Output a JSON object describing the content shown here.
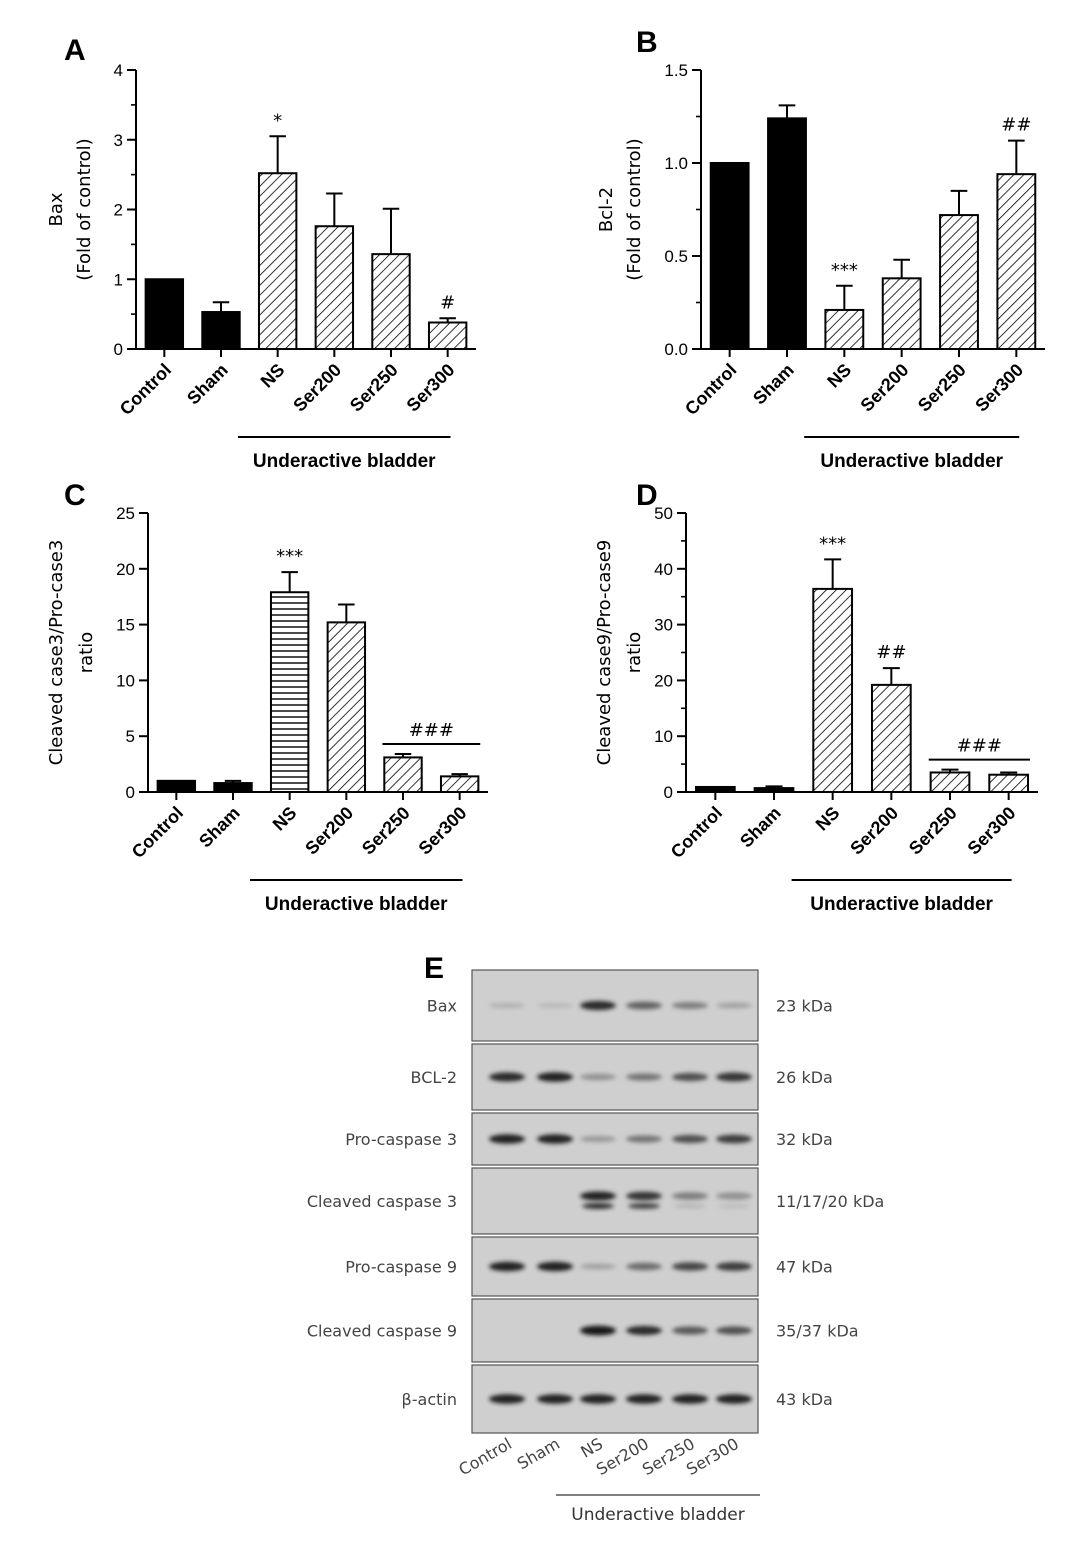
{
  "chart_data": [
    {
      "panel": "A",
      "type": "bar",
      "ylabel_lines": [
        "Bax",
        "(Fold of control)"
      ],
      "ylim": [
        0,
        4
      ],
      "yticks": [
        0,
        1,
        2,
        3,
        4
      ],
      "minor_ticks": true,
      "categories": [
        "Control",
        "Sham",
        "NS",
        "Ser200",
        "Ser250",
        "Ser300"
      ],
      "values": [
        1.0,
        0.53,
        2.52,
        1.76,
        1.36,
        0.38
      ],
      "errors": [
        0,
        0.14,
        0.53,
        0.47,
        0.65,
        0.06
      ],
      "fills": [
        "solid",
        "solid",
        "hatch",
        "hatch",
        "hatch",
        "hatch"
      ],
      "significance": [
        {
          "from": "NS",
          "to": "NS",
          "label": "*",
          "bracket": false
        },
        {
          "from": "Ser300",
          "to": "Ser300",
          "label": "#",
          "bracket": false
        }
      ],
      "group": {
        "label": "Underactive bladder",
        "from": "NS",
        "to": "Ser300"
      }
    },
    {
      "panel": "B",
      "type": "bar",
      "ylabel_lines": [
        "Bcl-2",
        "(Fold of control)"
      ],
      "ylim": [
        0,
        1.5
      ],
      "yticks": [
        "0.0",
        "0.5",
        "1.0",
        "1.5"
      ],
      "minor_ticks": true,
      "categories": [
        "Control",
        "Sham",
        "NS",
        "Ser200",
        "Ser250",
        "Ser300"
      ],
      "values": [
        1.0,
        1.24,
        0.21,
        0.38,
        0.72,
        0.94
      ],
      "errors": [
        0,
        0.07,
        0.13,
        0.1,
        0.13,
        0.18
      ],
      "fills": [
        "solid",
        "solid",
        "hatch",
        "hatch",
        "hatch",
        "hatch"
      ],
      "significance": [
        {
          "from": "NS",
          "to": "NS",
          "label": "***",
          "bracket": false
        },
        {
          "from": "Ser300",
          "to": "Ser300",
          "label": "##",
          "bracket": false
        }
      ],
      "group": {
        "label": "Underactive bladder",
        "from": "NS",
        "to": "Ser300"
      }
    },
    {
      "panel": "C",
      "type": "bar",
      "ylabel_lines": [
        "Cleaved case3/Pro-case3",
        "ratio"
      ],
      "ylim": [
        0,
        25
      ],
      "yticks": [
        0,
        5,
        10,
        15,
        20,
        25
      ],
      "minor_ticks": false,
      "categories": [
        "Control",
        "Sham",
        "NS",
        "Ser200",
        "Ser250",
        "Ser300"
      ],
      "values": [
        1.0,
        0.8,
        17.9,
        15.2,
        3.1,
        1.4
      ],
      "errors": [
        0,
        0.2,
        1.8,
        1.6,
        0.3,
        0.2
      ],
      "fills": [
        "solid",
        "solid",
        "hstripe",
        "hatch",
        "hatch",
        "hatch"
      ],
      "significance": [
        {
          "from": "NS",
          "to": "NS",
          "label": "***",
          "bracket": false
        },
        {
          "from": "Ser250",
          "to": "Ser300",
          "label": "###",
          "bracket": true
        }
      ],
      "group": {
        "label": "Underactive bladder",
        "from": "NS",
        "to": "Ser300"
      }
    },
    {
      "panel": "D",
      "type": "bar",
      "ylabel_lines": [
        "Cleaved case9/Pro-case9",
        "ratio"
      ],
      "ylim": [
        0,
        50
      ],
      "yticks": [
        0,
        10,
        20,
        30,
        40,
        50
      ],
      "minor_ticks": true,
      "categories": [
        "Control",
        "Sham",
        "NS",
        "Ser200",
        "Ser250",
        "Ser300"
      ],
      "values": [
        0.9,
        0.7,
        36.4,
        19.2,
        3.5,
        3.1
      ],
      "errors": [
        0,
        0.3,
        5.3,
        3.0,
        0.5,
        0.4
      ],
      "fills": [
        "solid",
        "solid",
        "hatch",
        "hatch",
        "hatch",
        "hatch"
      ],
      "significance": [
        {
          "from": "NS",
          "to": "NS",
          "label": "***",
          "bracket": false
        },
        {
          "from": "Ser200",
          "to": "Ser200",
          "label": "##",
          "bracket": false
        },
        {
          "from": "Ser250",
          "to": "Ser300",
          "label": "###",
          "bracket": true
        }
      ],
      "group": {
        "label": "Underactive bladder",
        "from": "NS",
        "to": "Ser300"
      }
    }
  ],
  "western_blot": {
    "panel": "E",
    "lanes": [
      "Control",
      "Sham",
      "NS",
      "Ser200",
      "Ser250",
      "Ser300"
    ],
    "group": {
      "label": "Underactive bladder",
      "from": "NS",
      "to": "Ser300"
    },
    "rows": [
      {
        "protein": "Bax",
        "size": "23 kDa",
        "intensity": [
          0.12,
          0.08,
          0.85,
          0.55,
          0.4,
          0.2
        ],
        "double": false
      },
      {
        "protein": "BCL-2",
        "size": "26 kDa",
        "intensity": [
          0.85,
          0.9,
          0.3,
          0.45,
          0.65,
          0.8
        ],
        "double": false
      },
      {
        "protein": "Pro-caspase 3",
        "size": "32 kDa",
        "intensity": [
          0.9,
          0.9,
          0.25,
          0.45,
          0.65,
          0.75
        ],
        "double": false
      },
      {
        "protein": "Cleaved caspase 3",
        "size": "11/17/20 kDa",
        "intensity": [
          0.0,
          0.0,
          0.9,
          0.8,
          0.4,
          0.3
        ],
        "double": true
      },
      {
        "protein": "Pro-caspase 9",
        "size": "47 kDa",
        "intensity": [
          0.9,
          0.9,
          0.2,
          0.5,
          0.7,
          0.75
        ],
        "double": false
      },
      {
        "protein": "Cleaved caspase 9",
        "size": "35/37 kDa",
        "intensity": [
          0.0,
          0.0,
          0.95,
          0.85,
          0.6,
          0.65
        ],
        "double": false
      },
      {
        "protein": "β-actin",
        "size": "43 kDa",
        "intensity": [
          0.9,
          0.9,
          0.9,
          0.9,
          0.9,
          0.9
        ],
        "double": false
      }
    ]
  }
}
